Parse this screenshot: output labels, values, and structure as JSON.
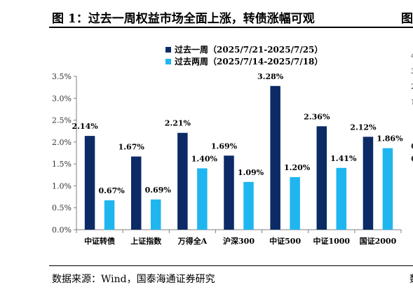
{
  "header": {
    "title": "图 1：过去一周权益市场全面上涨，转债涨幅可观",
    "right_title": "图"
  },
  "footer": {
    "source": "数据来源：Wind，国泰海通证券研究",
    "right_source": "数"
  },
  "colors": {
    "series1": "#0b2a66",
    "series2": "#1fb6f0"
  },
  "chart_data": {
    "type": "bar",
    "categories": [
      "中证转债",
      "上证指数",
      "万得全A",
      "沪深300",
      "中证500",
      "中证1000",
      "国证2000"
    ],
    "series": [
      {
        "name": "过去一周（2025/7/21-2025/7/25）",
        "values": [
          2.14,
          1.67,
          2.21,
          1.69,
          3.28,
          2.36,
          2.12
        ],
        "labels": [
          "2.14%",
          "1.67%",
          "2.21%",
          "1.69%",
          "3.28%",
          "2.36%",
          "2.12%"
        ]
      },
      {
        "name": "过去两周（2025/7/14-2025/7/18）",
        "values": [
          0.67,
          0.69,
          1.4,
          1.09,
          1.2,
          1.41,
          1.86
        ],
        "labels": [
          "0.67%",
          "0.69%",
          "1.40%",
          "1.09%",
          "1.20%",
          "1.41%",
          "1.86%"
        ]
      }
    ],
    "ylim": [
      0,
      3.5
    ],
    "yticks": [
      0,
      0.5,
      1.0,
      1.5,
      2.0,
      2.5,
      3.0,
      3.5
    ],
    "ytick_labels": [
      "0.0%",
      "0.5%",
      "1.0%",
      "1.5%",
      "2.0%",
      "2.5%",
      "3.0%",
      "3.5%"
    ],
    "legend_position": "top-center",
    "grid": false
  },
  "edge_fragments": [
    "4",
    "3",
    "2",
    "1",
    "C",
    "C"
  ]
}
